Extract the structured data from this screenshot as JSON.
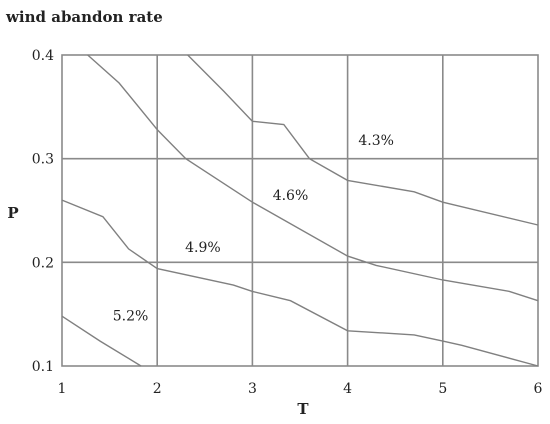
{
  "chart_data": {
    "type": "line",
    "title": "wind abandon rate",
    "xlabel": "T",
    "ylabel": "P",
    "xlim": [
      1,
      6
    ],
    "ylim": [
      0.1,
      0.4
    ],
    "x_ticks": [
      "1",
      "2",
      "3",
      "4",
      "5",
      "6"
    ],
    "y_ticks": [
      "0.1",
      "0.2",
      "0.3",
      "0.4"
    ],
    "grid": true,
    "series": [
      {
        "points": [
          [
            1.27,
            0.4
          ],
          [
            1.6,
            0.373
          ],
          [
            2.0,
            0.328
          ],
          [
            2.3,
            0.3
          ],
          [
            3.0,
            0.258
          ],
          [
            4.0,
            0.206
          ],
          [
            4.3,
            0.197
          ],
          [
            5.0,
            0.183
          ],
          [
            5.7,
            0.172
          ],
          [
            6.0,
            0.163
          ]
        ]
      },
      {
        "points": [
          [
            2.32,
            0.4
          ],
          [
            2.7,
            0.365
          ],
          [
            3.0,
            0.336
          ],
          [
            3.33,
            0.333
          ],
          [
            3.6,
            0.3
          ],
          [
            4.0,
            0.279
          ],
          [
            4.7,
            0.268
          ],
          [
            5.0,
            0.258
          ],
          [
            6.0,
            0.236
          ]
        ]
      },
      {
        "points": [
          [
            1.0,
            0.26
          ],
          [
            1.43,
            0.244
          ],
          [
            1.7,
            0.213
          ],
          [
            2.0,
            0.194
          ],
          [
            2.8,
            0.178
          ],
          [
            3.0,
            0.172
          ],
          [
            3.4,
            0.163
          ],
          [
            4.0,
            0.134
          ],
          [
            4.7,
            0.13
          ],
          [
            5.0,
            0.124
          ],
          [
            5.2,
            0.12
          ],
          [
            6.0,
            0.1
          ]
        ]
      },
      {
        "points": [
          [
            1.0,
            0.148
          ],
          [
            1.4,
            0.124
          ],
          [
            1.83,
            0.1
          ]
        ]
      }
    ],
    "annotations": [
      {
        "text": "4.3%",
        "x": 4.3,
        "y": 0.313
      },
      {
        "text": "4.6%",
        "x": 3.4,
        "y": 0.26
      },
      {
        "text": "4.9%",
        "x": 2.48,
        "y": 0.21
      },
      {
        "text": "5.2%",
        "x": 1.72,
        "y": 0.144
      }
    ]
  }
}
